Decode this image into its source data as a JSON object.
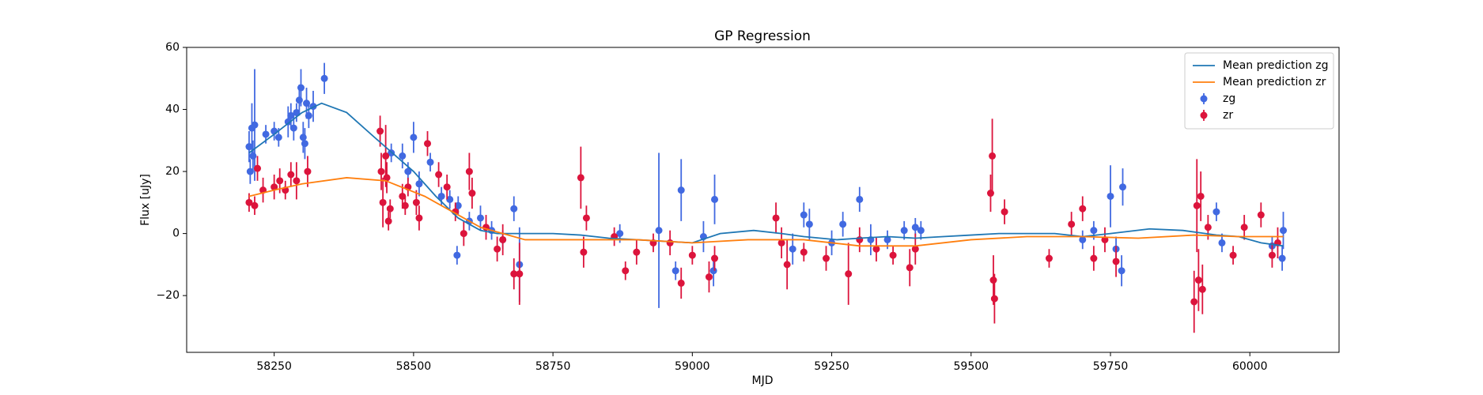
{
  "chart_data": {
    "type": "scatter",
    "title": "GP Regression",
    "xlabel": "MJD",
    "ylabel": "Flux [uJy]",
    "xlim": [
      58093,
      60160
    ],
    "ylim": [
      -38.3,
      60
    ],
    "xticks": [
      58250,
      58500,
      58750,
      59000,
      59250,
      59500,
      59750,
      60000
    ],
    "yticks": [
      {
        "value": -20,
        "label": "−20"
      },
      0,
      20,
      40,
      60
    ],
    "legend": "upper right",
    "lines": [
      {
        "name": "Mean prediction zg",
        "color": "#1f77b4",
        "x": [
          58205,
          58250,
          58300,
          58335,
          58380,
          58430,
          58500,
          58540,
          58580,
          58620,
          58650,
          58700,
          58750,
          58800,
          58850,
          58900,
          58950,
          59000,
          59050,
          59110,
          59160,
          59200,
          59260,
          59300,
          59350,
          59400,
          59450,
          59500,
          59550,
          59600,
          59650,
          59700,
          59750,
          59820,
          59880,
          59940,
          59980,
          60020,
          60060
        ],
        "values": [
          26,
          32,
          39,
          42,
          39,
          31,
          20,
          12,
          5,
          1,
          0,
          0,
          0,
          -0.5,
          -1.5,
          -2,
          -2.5,
          -3,
          0,
          1,
          0,
          -1,
          -2,
          -1.5,
          -1,
          -1.5,
          -1,
          -0.5,
          0,
          0,
          0,
          -1,
          0,
          1.5,
          1,
          -0.5,
          -1,
          -3,
          -4
        ]
      },
      {
        "name": "Mean prediction zr",
        "color": "#ff7f0e",
        "x": [
          58205,
          58250,
          58300,
          58380,
          58450,
          58520,
          58580,
          58620,
          58700,
          58800,
          58900,
          59000,
          59100,
          59200,
          59300,
          59400,
          59500,
          59600,
          59700,
          59800,
          59900,
          59980,
          60060
        ],
        "values": [
          12,
          14,
          16,
          18,
          17,
          12,
          6,
          2,
          -2,
          -2,
          -2,
          -3,
          -2,
          -2,
          -4,
          -4,
          -2,
          -1,
          -1,
          -1.5,
          -0.5,
          -1,
          -1
        ]
      }
    ],
    "series": [
      {
        "name": "zg",
        "color": "#4169e1",
        "x": [
          58205,
          58207,
          58210,
          58215,
          58212,
          58235,
          58250,
          58258,
          58275,
          58280,
          58285,
          58290,
          58295,
          58298,
          58302,
          58305,
          58308,
          58312,
          58320,
          58340,
          58460,
          58480,
          58490,
          58500,
          58510,
          58530,
          58550,
          58565,
          58580,
          58578,
          58600,
          58620,
          58640,
          58660,
          58680,
          58690,
          58870,
          58940,
          58970,
          58980,
          59020,
          59040,
          59038,
          59180,
          59200,
          59210,
          59250,
          59270,
          59300,
          59320,
          59350,
          59380,
          59400,
          59410,
          59700,
          59720,
          59750,
          59760,
          59772,
          59770,
          59940,
          59950,
          60040,
          60060,
          60058
        ],
        "values": [
          28,
          20,
          34,
          35,
          25,
          32,
          33,
          31,
          36,
          38,
          34,
          39,
          43,
          47,
          31,
          29,
          42,
          38,
          41,
          50,
          26,
          25,
          20,
          31,
          16,
          23,
          12,
          11,
          9,
          -7,
          4,
          5,
          1,
          -2,
          8,
          -10,
          0,
          1,
          -12,
          14,
          -1,
          11,
          -12,
          -5,
          6,
          3,
          -3,
          3,
          11,
          -2,
          -2,
          1,
          2,
          1,
          -2,
          1,
          12,
          -5,
          15,
          -12,
          7,
          -3,
          -4,
          1,
          -8
        ],
        "errors": [
          5,
          4,
          8,
          18,
          5,
          3,
          3,
          3,
          5,
          4,
          4,
          3,
          5,
          6,
          5,
          5,
          5,
          4,
          5,
          5,
          3,
          4,
          3,
          5,
          4,
          3,
          3,
          3,
          3,
          3,
          3,
          4,
          3,
          3,
          4,
          12,
          3,
          25,
          3,
          10,
          5,
          8,
          5,
          5,
          4,
          5,
          4,
          4,
          4,
          5,
          3,
          3,
          3,
          3,
          3,
          3,
          10,
          4,
          6,
          5,
          3,
          3,
          3,
          6,
          4
        ]
      },
      {
        "name": "zr",
        "color": "#dc143c",
        "x": [
          58205,
          58215,
          58220,
          58230,
          58250,
          58260,
          58270,
          58280,
          58290,
          58310,
          58440,
          58442,
          58445,
          58450,
          58452,
          58455,
          58458,
          58480,
          58485,
          58490,
          58505,
          58510,
          58525,
          58545,
          58560,
          58575,
          58590,
          58600,
          58605,
          58630,
          58650,
          58660,
          58680,
          58690,
          58800,
          58805,
          58810,
          58860,
          58880,
          58900,
          58930,
          58960,
          58980,
          59000,
          59030,
          59040,
          59150,
          59160,
          59170,
          59200,
          59240,
          59280,
          59300,
          59330,
          59360,
          59390,
          59400,
          59535,
          59538,
          59540,
          59542,
          59560,
          59640,
          59680,
          59700,
          59720,
          59740,
          59760,
          59900,
          59905,
          59908,
          59912,
          59915,
          59925,
          59970,
          59990,
          60020,
          60040,
          60050
        ],
        "values": [
          10,
          9,
          21,
          14,
          15,
          17,
          14,
          19,
          17,
          20,
          33,
          20,
          10,
          25,
          18,
          4,
          8,
          12,
          9,
          15,
          10,
          5,
          29,
          19,
          15,
          7,
          0,
          20,
          13,
          2,
          -5,
          -2,
          -13,
          -13,
          18,
          -6,
          5,
          -1,
          -12,
          -6,
          -3,
          -3,
          -16,
          -7,
          -14,
          -8,
          5,
          -3,
          -10,
          -6,
          -8,
          -13,
          -2,
          -5,
          -7,
          -11,
          -5,
          13,
          25,
          -15,
          -21,
          7,
          -8,
          3,
          8,
          -8,
          -2,
          -9,
          -22,
          9,
          -15,
          12,
          -18,
          2,
          -7,
          2,
          6,
          -7,
          -3
        ],
        "errors": [
          3,
          3,
          4,
          4,
          4,
          4,
          3,
          4,
          6,
          5,
          5,
          6,
          8,
          10,
          5,
          3,
          3,
          4,
          3,
          3,
          4,
          4,
          4,
          4,
          4,
          3,
          4,
          6,
          5,
          4,
          4,
          5,
          5,
          10,
          10,
          5,
          4,
          3,
          3,
          4,
          3,
          4,
          5,
          3,
          5,
          4,
          5,
          5,
          8,
          3,
          4,
          10,
          4,
          4,
          3,
          6,
          5,
          6,
          12,
          8,
          8,
          4,
          3,
          4,
          4,
          4,
          4,
          5,
          10,
          15,
          10,
          8,
          8,
          4,
          3,
          4,
          4,
          4,
          5
        ]
      }
    ]
  }
}
